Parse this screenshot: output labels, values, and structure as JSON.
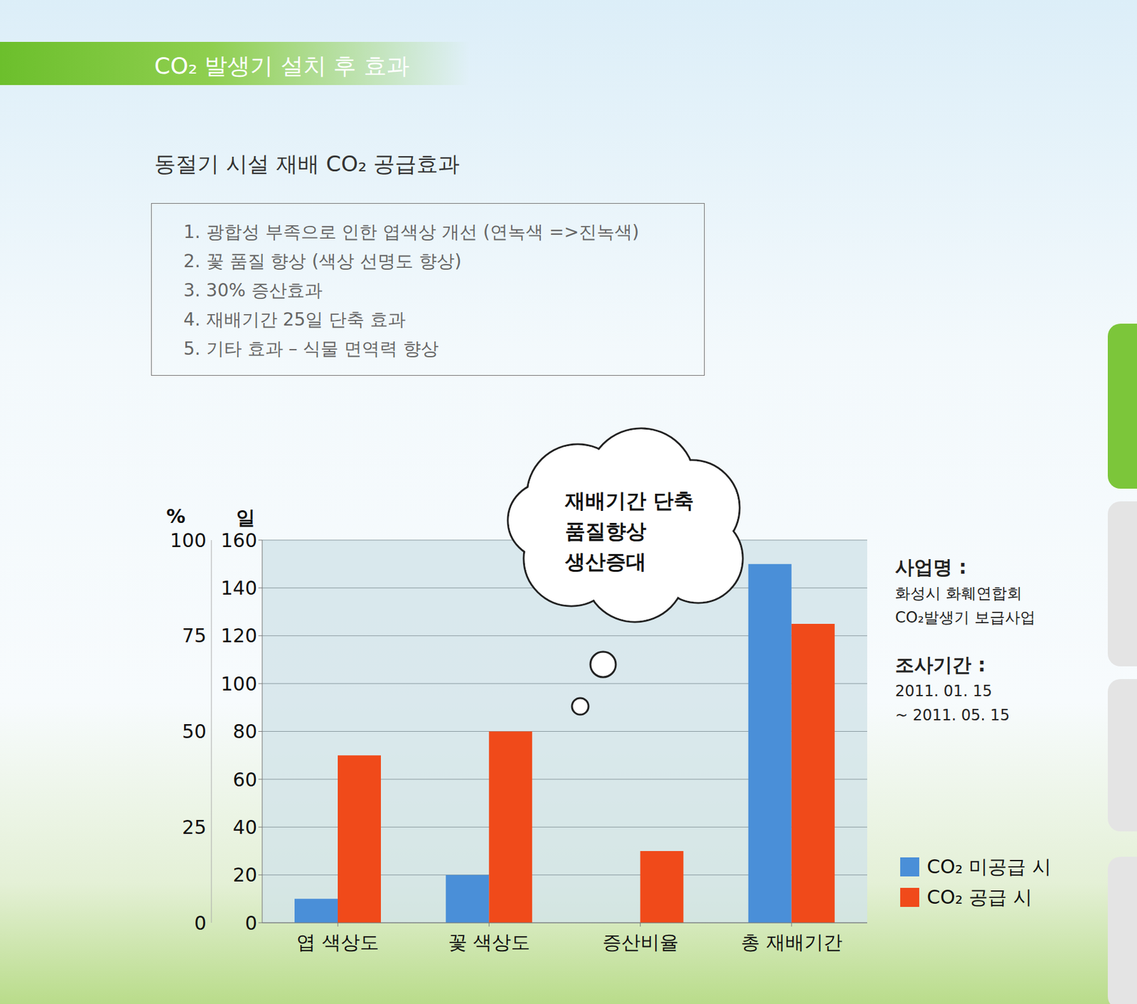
{
  "header": "CO₂ 발생기 설치 후 효과",
  "subtitle": "동절기 시설 재배 CO₂ 공급효과",
  "effects": [
    "1. 광합성 부족으로 인한 엽색상 개선 (연녹색 =>진녹색)",
    "2. 꽃 품질 향상 (색상 선명도 향상)",
    "3. 30% 증산효과",
    "4. 재배기간 25일 단축 효과",
    "5. 기타 효과 – 식물 면역력 향상"
  ],
  "chart_data": {
    "type": "bar",
    "categories": [
      "엽 색상도",
      "꽃 색상도",
      "증산비율",
      "총 재배기간"
    ],
    "series": [
      {
        "name": "CO₂ 미공급 시",
        "color": "#4a8fd8",
        "values": [
          10,
          20,
          null,
          150
        ]
      },
      {
        "name": "CO₂ 공급 시",
        "color": "#f04a1a",
        "values": [
          70,
          80,
          30,
          125
        ]
      }
    ],
    "ylabel": "일",
    "ylim": [
      0,
      160
    ],
    "yticks": [
      0,
      20,
      40,
      60,
      80,
      100,
      120,
      140,
      160
    ],
    "y2label": "%",
    "y2lim": [
      0,
      100
    ],
    "y2ticks": [
      0,
      25,
      50,
      75,
      100
    ],
    "grid": true,
    "legend": "right",
    "annotations": [
      "재배기간 단축",
      "품질향상",
      "생산증대"
    ]
  },
  "info": [
    {
      "label": "사업명 :",
      "text": [
        "화성시 화훼연합회",
        "CO₂발생기 보급사업"
      ]
    },
    {
      "label": "조사기간 :",
      "text": [
        "2011. 01. 15",
        "~ 2011. 05. 15"
      ]
    }
  ]
}
